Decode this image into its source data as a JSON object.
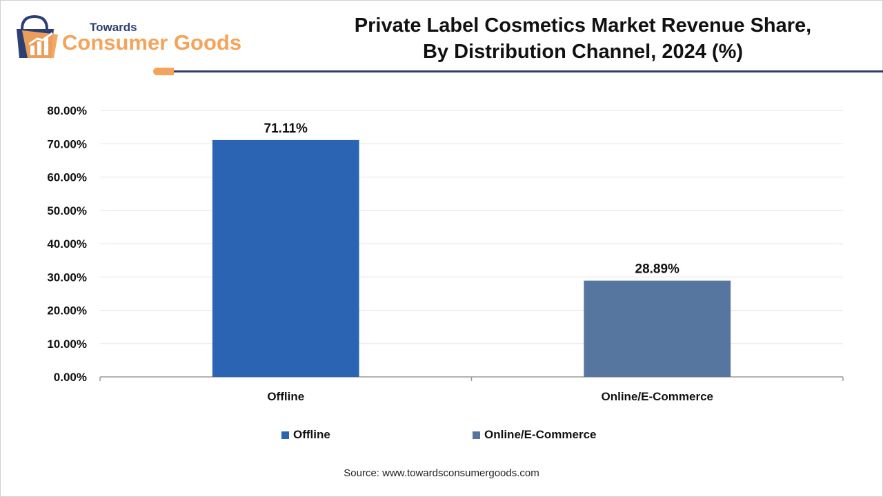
{
  "header": {
    "logo_top": "Towards",
    "logo_main": "Consumer Goods",
    "title_line1": "Private Label Cosmetics Market Revenue Share,",
    "title_line2": "By Distribution Channel, 2024 (%)"
  },
  "colors": {
    "accent_orange": "#f5a25a",
    "header_navy": "#2f3b64",
    "offline": "#2b64b3",
    "online": "#56759f"
  },
  "chart_data": {
    "type": "bar",
    "title": "Private Label Cosmetics Market Revenue Share, By Distribution Channel, 2024 (%)",
    "categories": [
      "Offline",
      "Online/E-Commerce"
    ],
    "values": [
      71.11,
      28.89
    ],
    "data_labels": [
      "71.11%",
      "28.89%"
    ],
    "ylim": [
      0,
      80
    ],
    "yticks": [
      0,
      10,
      20,
      30,
      40,
      50,
      60,
      70,
      80
    ],
    "ytick_labels": [
      "0.00%",
      "10.00%",
      "20.00%",
      "30.00%",
      "40.00%",
      "50.00%",
      "60.00%",
      "70.00%",
      "80.00%"
    ],
    "grid": true,
    "legend": {
      "position": "bottom",
      "entries": [
        {
          "label": "Offline",
          "color": "#2b64b3"
        },
        {
          "label": "Online/E-Commerce",
          "color": "#56759f"
        }
      ]
    }
  },
  "source": "Source: www.towardsconsumergoods.com"
}
